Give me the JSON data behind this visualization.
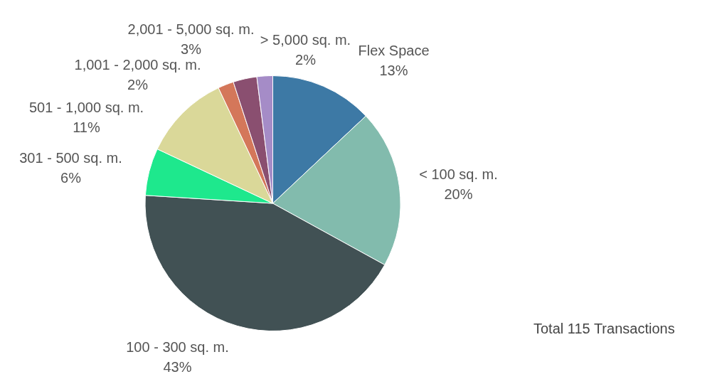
{
  "chart_data": {
    "type": "pie",
    "categories": [
      "Flex Space",
      "< 100 sq. m.",
      "100 - 300 sq. m.",
      "301 - 500 sq. m.",
      "501 - 1,000 sq. m.",
      "1,001 - 2,000 sq. m.",
      "2,001 - 5,000 sq. m.",
      "> 5,000 sq. m."
    ],
    "values": [
      13,
      20,
      43,
      6,
      11,
      2,
      3,
      2
    ],
    "value_labels": [
      "13%",
      "20%",
      "43%",
      "6%",
      "11%",
      "2%",
      "3%",
      "2%"
    ],
    "colors": [
      "#3d79a5",
      "#82bbad",
      "#415154",
      "#1ee88d",
      "#dad899",
      "#d4775a",
      "#8a4f70",
      "#a58cc7"
    ],
    "annotations": [
      "Total 115 Transactions"
    ]
  }
}
